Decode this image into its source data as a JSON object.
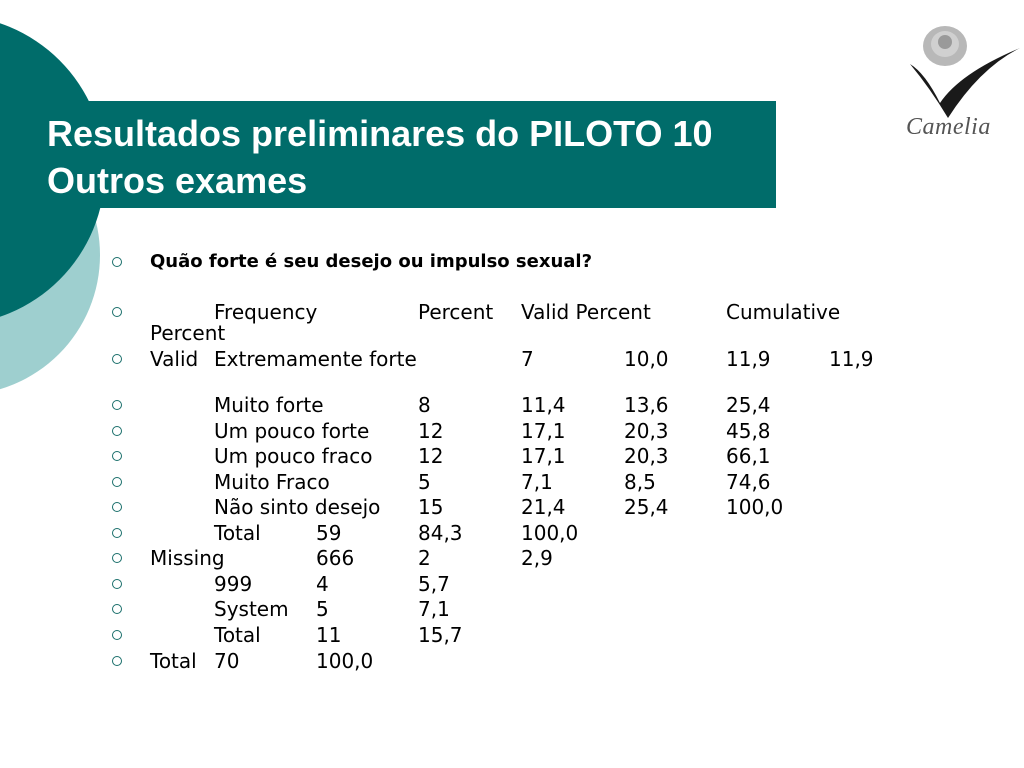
{
  "header": {
    "title_line1": "Resultados preliminares do PILOTO 10",
    "title_line2": "Outros exames"
  },
  "logo": {
    "text": "Camelia",
    "icon": "rose-icon"
  },
  "colors": {
    "title_bar": "#006c6a",
    "circle_dark": "#006c6a",
    "circle_light": "#9ecfcf",
    "bullet": "#1a6f6b"
  },
  "question": "Quão forte é seu desejo ou impulso sexual?",
  "table_header": {
    "frequency": "Frequency",
    "percent": "Percent",
    "valid_percent": "Valid Percent",
    "cumulative": "Cumulative",
    "cumulative_cont": "Percent"
  },
  "rows": [
    {
      "label": "Valid",
      "category": "Extremamente forte",
      "c1": "7",
      "c2": "10,0",
      "c3": "11,9",
      "c4": "11,9"
    },
    {
      "label": "",
      "category": "Muito forte",
      "c1": "8",
      "c2": "11,4",
      "c3": "13,6",
      "c4": "25,4"
    },
    {
      "label": "",
      "category": "Um pouco forte",
      "c1": "12",
      "c2": "17,1",
      "c3": "20,3",
      "c4": "45,8"
    },
    {
      "label": "",
      "category": "Um pouco fraco",
      "c1": "12",
      "c2": "17,1",
      "c3": "20,3",
      "c4": "66,1"
    },
    {
      "label": "",
      "category": "Muito Fraco",
      "c1": "5",
      "c2": "7,1",
      "c3": "8,5",
      "c4": "74,6"
    },
    {
      "label": "",
      "category": "Não sinto desejo",
      "c1": "15",
      "c2": "21,4",
      "c3": "25,4",
      "c4": "100,0"
    },
    {
      "label": "",
      "category": "Total",
      "c1": "59",
      "c2": "84,3",
      "c3": "100,0",
      "c4": ""
    },
    {
      "label": "Missing",
      "category": "",
      "c1": "666",
      "c2": "2",
      "c3": "2,9",
      "c4": ""
    },
    {
      "label": "",
      "category": "999",
      "c1": "4",
      "c2": "5,7",
      "c3": "",
      "c4": ""
    },
    {
      "label": "",
      "category": "System",
      "c1": "5",
      "c2": "7,1",
      "c3": "",
      "c4": ""
    },
    {
      "label": "",
      "category": "Total",
      "c1": "11",
      "c2": "15,7",
      "c3": "",
      "c4": ""
    },
    {
      "label": "Total",
      "category": "70",
      "c1": "100,0",
      "c2": "",
      "c3": "",
      "c4": ""
    }
  ]
}
